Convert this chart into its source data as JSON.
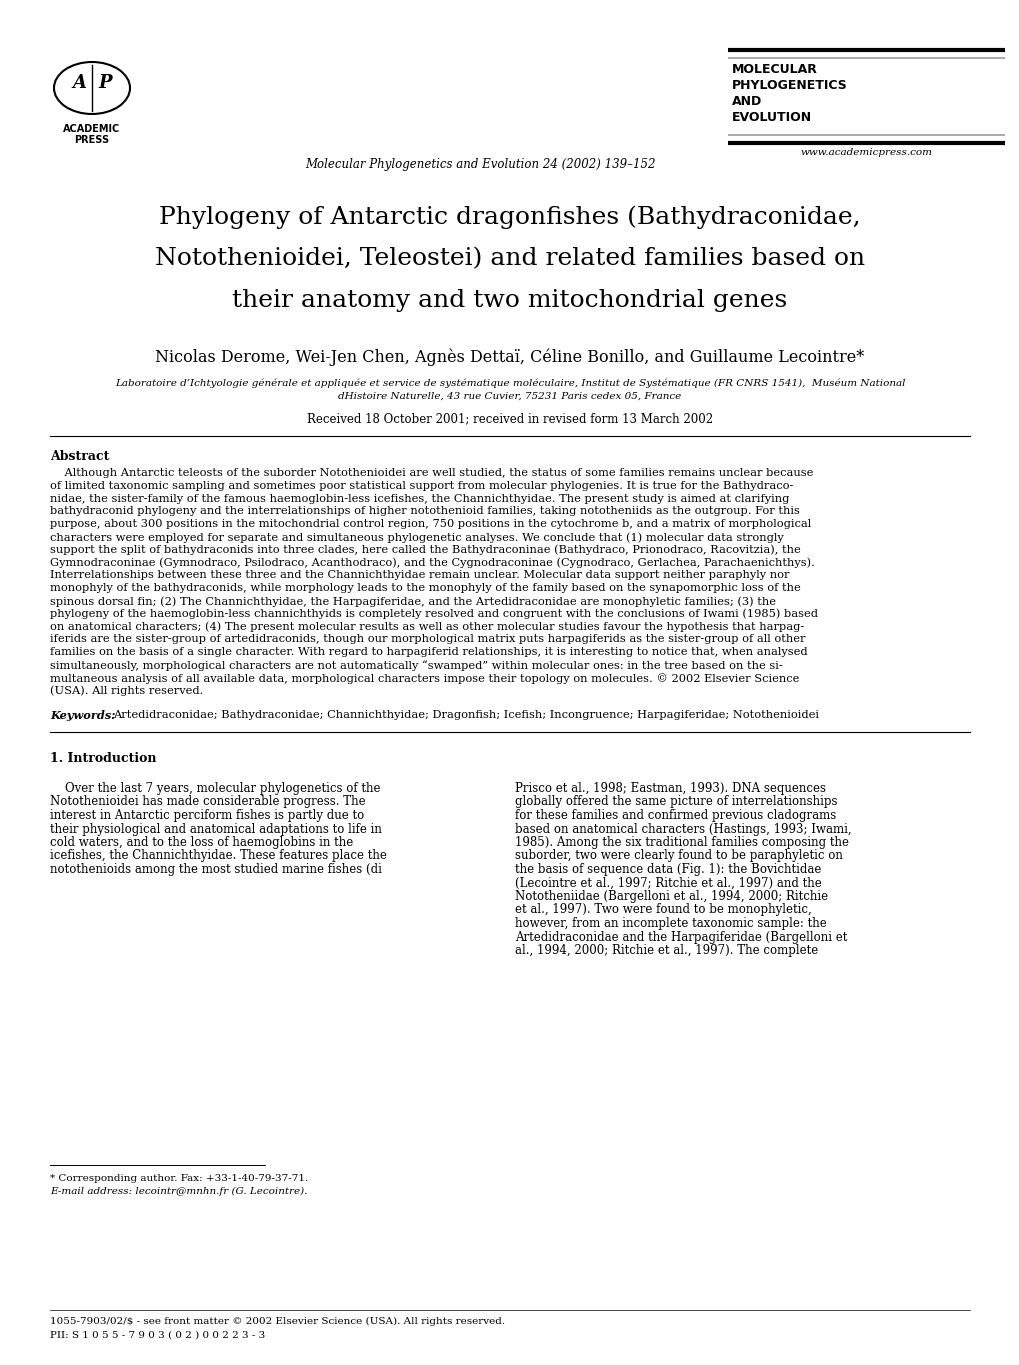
{
  "page_width": 10.2,
  "page_height": 13.65,
  "bg_color": "#ffffff",
  "journal_name": "Molecular Phylogenetics and Evolution 24 (2002) 139–152",
  "journal_title_lines": [
    "MOLECULAR",
    "PHYLOGENETICS",
    "AND",
    "EVOLUTION"
  ],
  "website": "www.academicpress.com",
  "paper_title_lines": [
    "Phylogeny of Antarctic dragonﬁshes (Bathydraconidae,",
    "Notothenioidei, Teleostei) and related families based on",
    "their anatomy and two mitochondrial genes"
  ],
  "authors": "Nicolas Derome, Wei-Jen Chen, Agnès Dettaï, Céline Bonillo, and Guillaume Lecointre*",
  "affiliation_line1": "Laboratoire d’Ichtyologie générale et appliquée et service de systématique moléculaire, Institut de Systématique (FR CNRS 1541),  Muséum National",
  "affiliation_line2": "dHistoire Naturelle, 43 rue Cuvier, 75231 Paris cedex 05, France",
  "received": "Received 18 October 2001; received in revised form 13 March 2002",
  "abstract_title": "Abstract",
  "abstract_lines": [
    "    Although Antarctic teleosts of the suborder Notothenioidei are well studied, the status of some families remains unclear because",
    "of limited taxonomic sampling and sometimes poor statistical support from molecular phylogenies. It is true for the Bathydraco-",
    "nidae, the sister-family of the famous haemoglobin-less icefishes, the Channichthyidae. The present study is aimed at clarifying",
    "bathydraconid phylogeny and the interrelationships of higher notothenioid families, taking nototheniids as the outgroup. For this",
    "purpose, about 300 positions in the mitochondrial control region, 750 positions in the cytochrome b, and a matrix of morphological",
    "characters were employed for separate and simultaneous phylogenetic analyses. We conclude that (1) molecular data strongly",
    "support the split of bathydraconids into three clades, here called the Bathydraconinae (Bathydraco, Prionodraco, Racovitzia), the",
    "Gymnodraconinae (Gymnodraco, Psilodraco, Acanthodraco), and the Cygnodraconinae (Cygnodraco, Gerlachea, Parachaenichthys).",
    "Interrelationships between these three and the Channichthyidae remain unclear. Molecular data support neither paraphyly nor",
    "monophyly of the bathydraconids, while morphology leads to the monophyly of the family based on the synapomorphic loss of the",
    "spinous dorsal fin; (2) The Channichthyidae, the Harpagiferidae, and the Artedidraconidae are monophyletic families; (3) the",
    "phylogeny of the haemoglobin-less channichthyids is completely resolved and congruent with the conclusions of Iwami (1985) based",
    "on anatomical characters; (4) The present molecular results as well as other molecular studies favour the hypothesis that harpag-",
    "iferids are the sister-group of artedidraconids, though our morphological matrix puts harpagiferids as the sister-group of all other",
    "families on the basis of a single character. With regard to harpagiferid relationships, it is interesting to notice that, when analysed",
    "simultaneously, morphological characters are not automatically “swamped” within molecular ones: in the tree based on the si-",
    "multaneous analysis of all available data, morphological characters impose their topology on molecules. © 2002 Elsevier Science",
    "(USA). All rights reserved."
  ],
  "keywords_label": "Keywords:",
  "keywords_text": "Artedidraconidae; Bathydraconidae; Channichthyidae; Dragonﬁsh; Iceﬁsh; Incongruence; Harpagiferidae; Notothenioidei",
  "intro_title": "1. Introduction",
  "intro_col1_lines": [
    "    Over the last 7 years, molecular phylogenetics of the",
    "Notothenioidei has made considerable progress. The",
    "interest in Antarctic perciform fishes is partly due to",
    "their physiological and anatomical adaptations to life in",
    "cold waters, and to the loss of haemoglobins in the",
    "icefishes, the Channichthyidae. These features place the",
    "notothenioids among the most studied marine fishes (di"
  ],
  "intro_col2_lines": [
    "Prisco et al., 1998; Eastman, 1993). DNA sequences",
    "globally offered the same picture of interrelationships",
    "for these families and confirmed previous cladograms",
    "based on anatomical characters (Hastings, 1993; Iwami,",
    "1985). Among the six traditional families composing the",
    "suborder, two were clearly found to be paraphyletic on",
    "the basis of sequence data (Fig. 1): the Bovichtidae",
    "(Lecointre et al., 1997; Ritchie et al., 1997) and the",
    "Nototheniidae (Bargelloni et al., 1994, 2000; Ritchie",
    "et al., 1997). Two were found to be monophyletic,",
    "however, from an incomplete taxonomic sample: the",
    "Artedidraconidae and the Harpagiferidae (Bargelloni et",
    "al., 1994, 2000; Ritchie et al., 1997). The complete"
  ],
  "footnote_star": "* Corresponding author. Fax: +33-1-40-79-37-71.",
  "footnote_email": "E-mail address: lecointr@mnhn.fr (G. Lecointre).",
  "footer_issn": "1055-7903/02/$ - see front matter © 2002 Elsevier Science (USA). All rights reserved.",
  "footer_pii": "PII: S 1 0 5 5 - 7 9 0 3 ( 0 2 ) 0 0 2 2 3 - 3"
}
